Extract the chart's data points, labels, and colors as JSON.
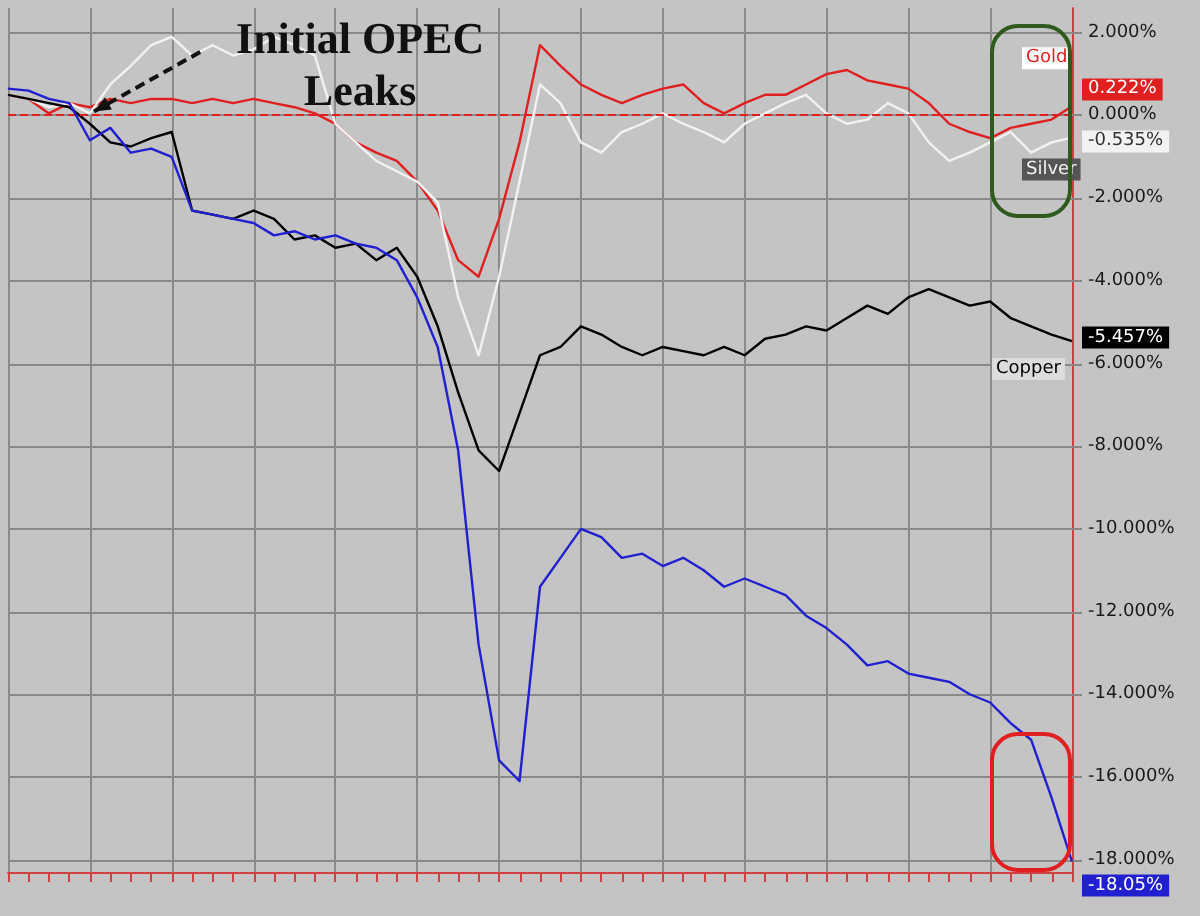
{
  "chart_data": {
    "type": "line",
    "categories": [
      null,
      null,
      null,
      null,
      null,
      null,
      null,
      null,
      null,
      null,
      null,
      null,
      null,
      null,
      null,
      null,
      null,
      null,
      null,
      null,
      null,
      null,
      null,
      null,
      null,
      null,
      null,
      null,
      null,
      null,
      null,
      null,
      null,
      null,
      null,
      null,
      null,
      null,
      null,
      null,
      null,
      null,
      null,
      null,
      null,
      null,
      null,
      null,
      null,
      null,
      null,
      null,
      null
    ],
    "series": [
      {
        "name": "Gold",
        "color": "#e02020",
        "values": [
          0.5,
          0.4,
          0.05,
          0.3,
          0.2,
          0.4,
          0.3,
          0.4,
          0.4,
          0.3,
          0.4,
          0.3,
          0.4,
          0.3,
          0.2,
          0.05,
          -0.2,
          -0.65,
          -0.9,
          -1.1,
          -1.6,
          -2.3,
          -3.5,
          -3.9,
          -2.5,
          -0.65,
          1.7,
          1.2,
          0.75,
          0.5,
          0.3,
          0.5,
          0.65,
          0.75,
          0.3,
          0.05,
          0.3,
          0.5,
          0.5,
          0.75,
          1.0,
          1.1,
          0.85,
          0.75,
          0.65,
          0.3,
          -0.2,
          -0.4,
          -0.55,
          -0.3,
          -0.2,
          -0.1,
          0.222
        ],
        "value_labels": [
          null,
          null,
          null,
          null,
          null,
          null,
          null,
          null,
          null,
          null,
          null,
          null,
          null,
          null,
          null,
          null,
          null,
          null,
          null,
          null,
          null,
          null,
          null,
          null,
          null,
          null,
          null,
          null,
          null,
          null,
          null,
          null,
          null,
          null,
          null,
          null,
          null,
          null,
          null,
          null,
          null,
          null,
          null,
          null,
          null,
          null,
          null,
          null,
          null,
          null,
          null,
          null,
          "0.222%"
        ]
      },
      {
        "name": "Silver",
        "color": "#f2f2f2",
        "values": [
          0.5,
          0.4,
          0.2,
          0.3,
          0.05,
          0.75,
          1.2,
          1.7,
          1.9,
          1.45,
          1.7,
          1.45,
          1.6,
          1.9,
          1.7,
          1.45,
          -0.2,
          -0.65,
          -1.1,
          -1.35,
          -1.6,
          -2.1,
          -4.4,
          -5.8,
          -3.9,
          -1.6,
          0.75,
          0.3,
          -0.65,
          -0.9,
          -0.4,
          -0.2,
          0.05,
          -0.2,
          -0.4,
          -0.65,
          -0.2,
          0.05,
          0.3,
          0.5,
          0.05,
          -0.2,
          -0.1,
          0.3,
          0.05,
          -0.65,
          -1.1,
          -0.9,
          -0.65,
          -0.4,
          -0.9,
          -0.65,
          -0.535
        ],
        "value_labels": [
          null,
          null,
          null,
          null,
          null,
          null,
          null,
          null,
          null,
          null,
          null,
          null,
          null,
          null,
          null,
          null,
          null,
          null,
          null,
          null,
          null,
          null,
          null,
          null,
          null,
          null,
          null,
          null,
          null,
          null,
          null,
          null,
          null,
          null,
          null,
          null,
          null,
          null,
          null,
          null,
          null,
          null,
          null,
          null,
          null,
          null,
          null,
          null,
          null,
          null,
          null,
          null,
          "-0.535%"
        ]
      },
      {
        "name": "Copper",
        "color": "#000000",
        "values": [
          0.5,
          0.4,
          0.3,
          0.2,
          -0.2,
          -0.65,
          -0.75,
          -0.55,
          -0.4,
          -2.3,
          -2.4,
          -2.5,
          -2.3,
          -2.5,
          -3.0,
          -2.9,
          -3.2,
          -3.1,
          -3.5,
          -3.2,
          -3.9,
          -5.1,
          -6.7,
          -8.1,
          -8.6,
          -7.2,
          -5.8,
          -5.6,
          -5.1,
          -5.3,
          -5.6,
          -5.8,
          -5.6,
          -5.7,
          -5.8,
          -5.6,
          -5.8,
          -5.4,
          -5.3,
          -5.1,
          -5.2,
          -4.9,
          -4.6,
          -4.8,
          -4.4,
          -4.2,
          -4.4,
          -4.6,
          -4.5,
          -4.9,
          -5.1,
          -5.3,
          -5.457
        ],
        "value_labels": [
          null,
          null,
          null,
          null,
          null,
          null,
          null,
          null,
          null,
          null,
          null,
          null,
          null,
          null,
          null,
          null,
          null,
          null,
          null,
          null,
          null,
          null,
          null,
          null,
          null,
          null,
          null,
          null,
          null,
          null,
          null,
          null,
          null,
          null,
          null,
          null,
          null,
          null,
          null,
          null,
          null,
          null,
          null,
          null,
          null,
          null,
          null,
          null,
          null,
          null,
          null,
          null,
          "-5.457%"
        ]
      },
      {
        "color": "#2020d0",
        "values": [
          0.65,
          0.6,
          0.4,
          0.3,
          -0.6,
          -0.3,
          -0.9,
          -0.8,
          -1.0,
          -2.3,
          -2.4,
          -2.5,
          -2.6,
          -2.9,
          -2.8,
          -3.0,
          -2.9,
          -3.1,
          -3.2,
          -3.5,
          -4.4,
          -5.6,
          -8.1,
          -12.8,
          -15.6,
          -16.1,
          -11.4,
          -10.7,
          -10.0,
          -10.2,
          -10.7,
          -10.6,
          -10.9,
          -10.7,
          -11.0,
          -11.4,
          -11.2,
          -11.4,
          -11.6,
          -12.1,
          -12.4,
          -12.8,
          -13.3,
          -13.2,
          -13.5,
          -13.6,
          -13.7,
          -14.0,
          -14.2,
          -14.7,
          -15.1,
          -16.5,
          -18.05
        ],
        "value_labels": [
          null,
          null,
          null,
          null,
          null,
          null,
          null,
          null,
          null,
          null,
          null,
          null,
          null,
          null,
          null,
          null,
          null,
          null,
          null,
          null,
          null,
          null,
          null,
          null,
          null,
          null,
          null,
          null,
          null,
          null,
          null,
          null,
          null,
          null,
          null,
          null,
          null,
          null,
          null,
          null,
          null,
          null,
          null,
          null,
          null,
          null,
          null,
          null,
          null,
          null,
          null,
          null,
          "-18.05%"
        ]
      }
    ],
    "ylim": [
      -18.3,
      2.6
    ],
    "yticks": [
      {
        "value": 2,
        "label": "2.000%"
      },
      {
        "value": 0,
        "label": "0.000%"
      },
      {
        "value": -2,
        "label": "-2.000%"
      },
      {
        "value": -4,
        "label": "-4.000%"
      },
      {
        "value": -6,
        "label": "-6.000%"
      },
      {
        "value": -8,
        "label": "-8.000%"
      },
      {
        "value": -10,
        "label": "-10.000%"
      },
      {
        "value": -12,
        "label": "-12.000%"
      },
      {
        "value": -14,
        "label": "-14.000%"
      },
      {
        "value": -16,
        "label": "-16.000%"
      },
      {
        "value": -18,
        "label": "-18.000%"
      }
    ],
    "ref_lines": [
      {
        "axis": "y",
        "value": 0,
        "color": "#e02020",
        "line_style": "dashed"
      }
    ],
    "annotations": [
      "Initial OPEC Leaks"
    ],
    "grid": true,
    "legend": false,
    "marker": "none",
    "line_style": "solid"
  }
}
